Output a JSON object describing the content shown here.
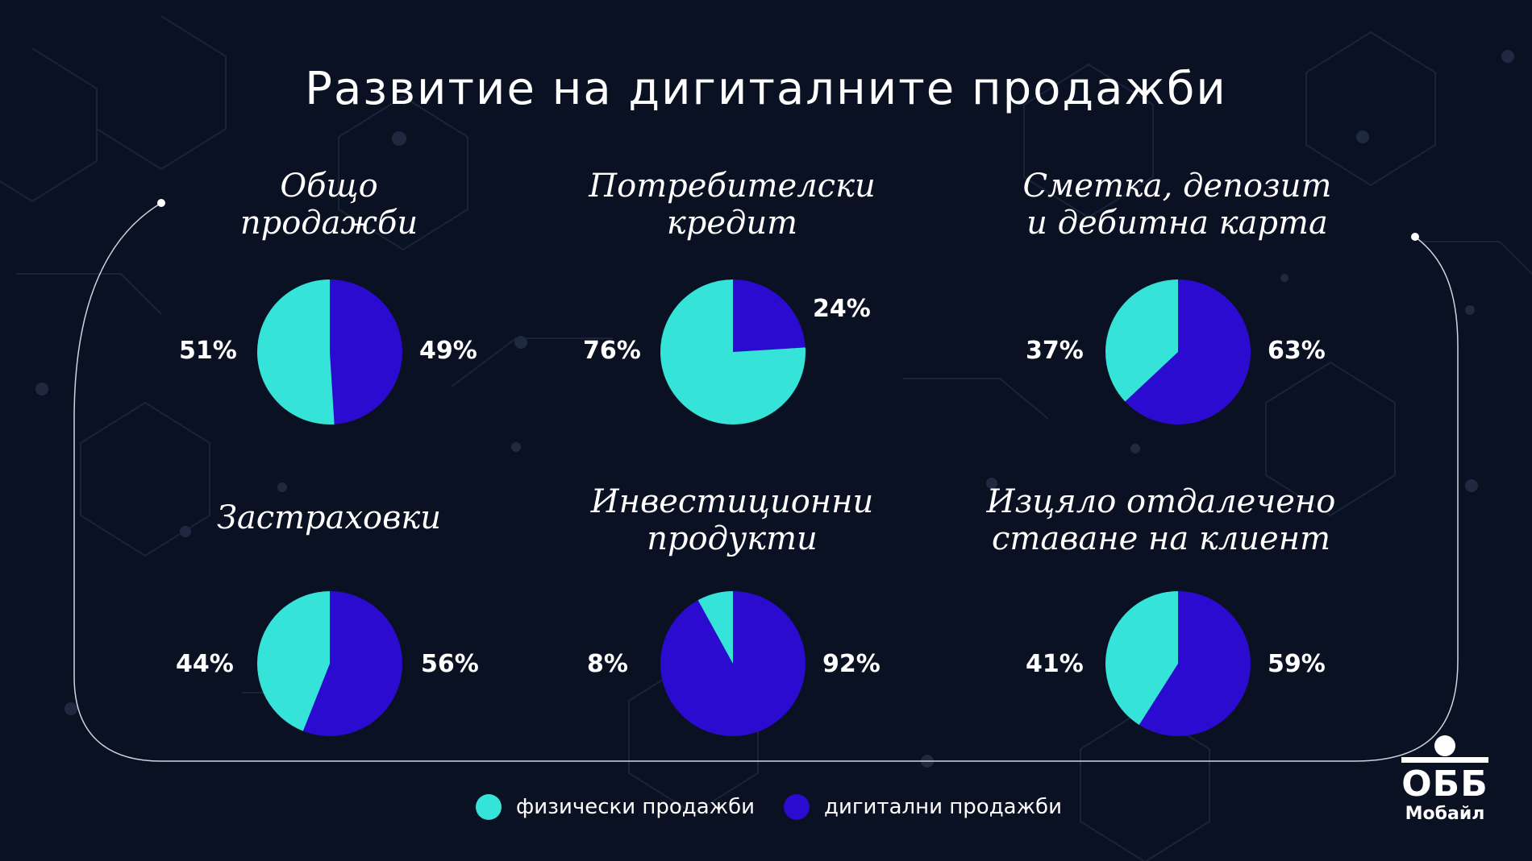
{
  "title": "Развитие на дигиталните продажби",
  "colors": {
    "physical": "#36e3d8",
    "digital": "#2a0bcf",
    "background": "#0a1122"
  },
  "legend": {
    "physical": "физически продажби",
    "digital": "дигитални продажби"
  },
  "logo": {
    "mark": "ОББ",
    "sub": "Мобайл"
  },
  "chart_data": [
    {
      "type": "pie",
      "title": "Общо продажби",
      "title_lines": [
        "Общо",
        "продажби"
      ],
      "slices": [
        {
          "label": "физически продажби",
          "value": 51,
          "text": "51%"
        },
        {
          "label": "дигитални продажби",
          "value": 49,
          "text": "49%"
        }
      ]
    },
    {
      "type": "pie",
      "title": "Потребителски кредит",
      "title_lines": [
        "Потребителски",
        "кредит"
      ],
      "slices": [
        {
          "label": "физически продажби",
          "value": 76,
          "text": "76%"
        },
        {
          "label": "дигитални продажби",
          "value": 24,
          "text": "24%"
        }
      ]
    },
    {
      "type": "pie",
      "title": "Сметка, депозит и дебитна карта",
      "title_lines": [
        "Сметка, депозит",
        "и дебитна карта"
      ],
      "slices": [
        {
          "label": "физически продажби",
          "value": 37,
          "text": "37%"
        },
        {
          "label": "дигитални продажби",
          "value": 63,
          "text": "63%"
        }
      ]
    },
    {
      "type": "pie",
      "title": "Застраховки",
      "title_lines": [
        "Застраховки"
      ],
      "slices": [
        {
          "label": "физически продажби",
          "value": 44,
          "text": "44%"
        },
        {
          "label": "дигитални продажби",
          "value": 56,
          "text": "56%"
        }
      ]
    },
    {
      "type": "pie",
      "title": "Инвестиционни продукти",
      "title_lines": [
        "Инвестиционни",
        "продукти"
      ],
      "slices": [
        {
          "label": "физически продажби",
          "value": 8,
          "text": "8%"
        },
        {
          "label": "дигитални продажби",
          "value": 92,
          "text": "92%"
        }
      ]
    },
    {
      "type": "pie",
      "title": "Изцяло отдалечено ставане на клиент",
      "title_lines": [
        "Изцяло отдалечено",
        "ставане на клиент"
      ],
      "slices": [
        {
          "label": "физически продажби",
          "value": 41,
          "text": "41%"
        },
        {
          "label": "дигитални продажби",
          "value": 59,
          "text": "59%"
        }
      ]
    }
  ]
}
